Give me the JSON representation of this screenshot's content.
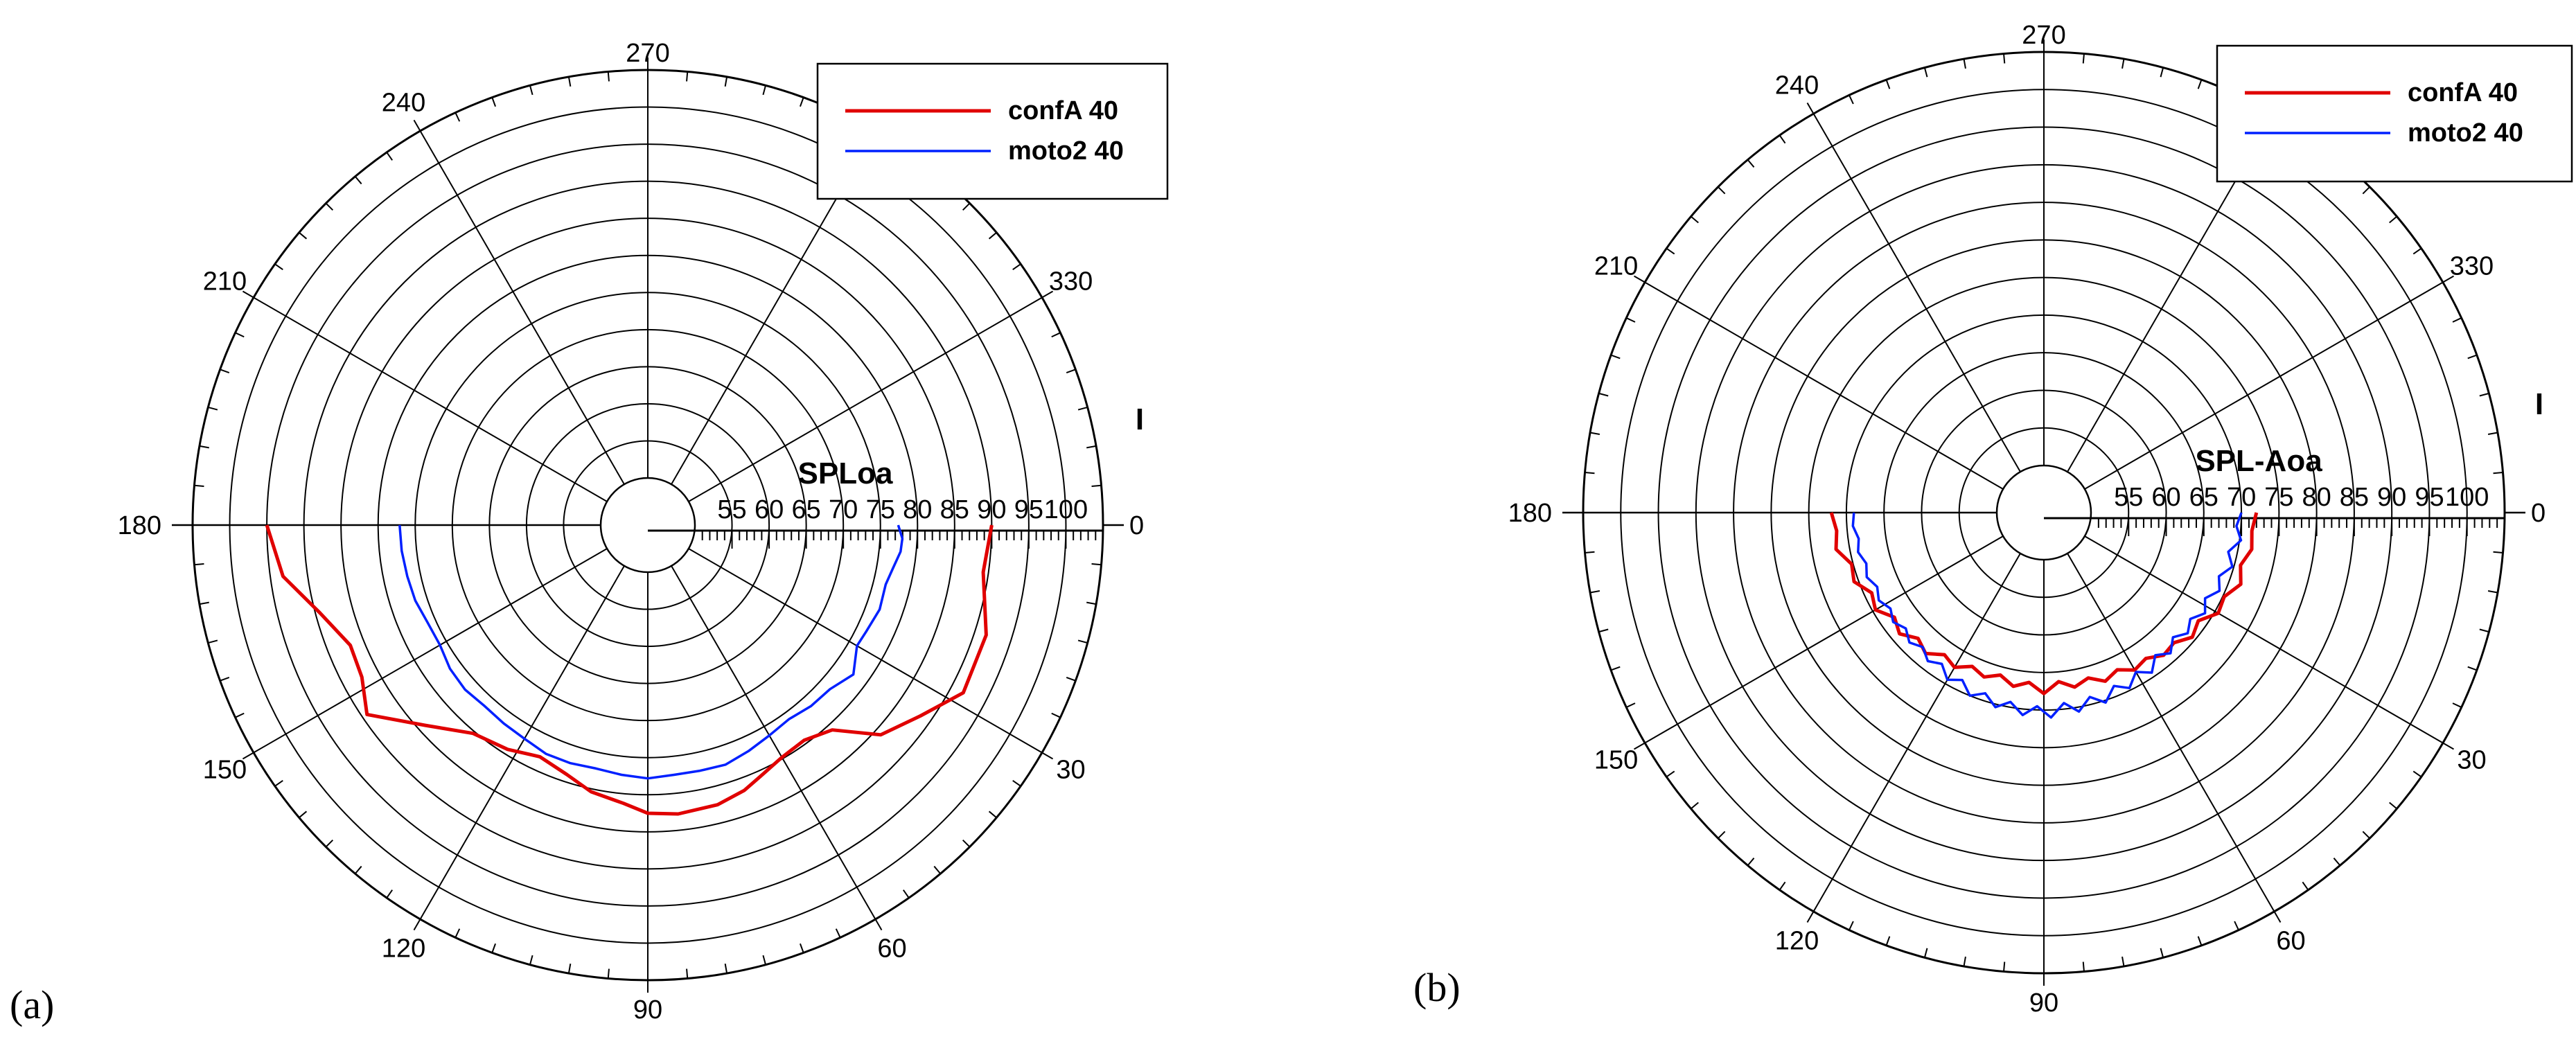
{
  "chart_data": [
    {
      "type": "polar-line",
      "panel_label": "(a)",
      "radial_axis_title": "SPLoa",
      "angle_axis_title": "I",
      "radial_range": [
        50,
        105
      ],
      "radial_ticks": [
        55,
        60,
        65,
        70,
        75,
        80,
        85,
        90,
        95,
        100
      ],
      "angle_ticks": [
        0,
        30,
        60,
        90,
        120,
        150,
        180,
        210,
        240,
        270,
        330
      ],
      "angle_direction": "clockwise from right",
      "legend_position": "top-right",
      "grid": true,
      "series": [
        {
          "name": "confA 40",
          "color": "#e00000",
          "theta": [
            0,
            8,
            18,
            28,
            35,
            42,
            48,
            54,
            60,
            66,
            70,
            76,
            84,
            90,
            95,
            102,
            108,
            115,
            122,
            130,
            138,
            146,
            152,
            158,
            165,
            172,
            180
          ],
          "r": [
            90,
            89.3,
            91.6,
            91.8,
            88.5,
            85.9,
            80.8,
            79.5,
            79.8,
            80.8,
            81.7,
            82.5,
            82.8,
            82.5,
            81.3,
            80.4,
            79.0,
            78.1,
            79.3,
            80.3,
            84.0,
            89.3,
            87.3,
            86.9,
            89.4,
            93.3,
            95
          ]
        },
        {
          "name": "moto2 40",
          "color": "#0020ff",
          "theta": [
            0,
            3,
            6,
            10,
            14,
            20,
            26,
            30,
            36,
            42,
            48,
            54,
            60,
            66,
            72,
            78,
            84,
            90,
            96,
            102,
            108,
            114,
            120,
            126,
            132,
            138,
            144,
            150,
            156,
            162,
            168,
            174,
            180
          ],
          "r": [
            77.4,
            78.0,
            77.9,
            77.2,
            76.7,
            76.9,
            76.4,
            76.2,
            77.9,
            76.7,
            76.5,
            76.0,
            76.4,
            77.0,
            77.6,
            77.5,
            77.5,
            77.8,
            77.5,
            77.2,
            77.4,
            77.4,
            76.9,
            76.7,
            76.5,
            76.8,
            76.6,
            76.0,
            76.1,
            76.6,
            76.8,
            77.0,
            77.1
          ]
        }
      ]
    },
    {
      "type": "polar-line",
      "panel_label": "(b)",
      "radial_axis_title": "SPL-Aoa",
      "angle_axis_title": "I",
      "radial_range": [
        50,
        105
      ],
      "radial_ticks": [
        55,
        60,
        65,
        70,
        75,
        80,
        85,
        90,
        95,
        100
      ],
      "angle_ticks": [
        0,
        30,
        60,
        90,
        120,
        150,
        180,
        210,
        240,
        270,
        330
      ],
      "angle_direction": "clockwise from right",
      "legend_position": "top-right",
      "grid": true,
      "series": [
        {
          "name": "confA 40",
          "color": "#e00000",
          "theta": [
            0,
            5,
            10,
            15,
            20,
            25,
            30,
            35,
            40,
            45,
            50,
            55,
            60,
            65,
            70,
            75,
            80,
            85,
            90,
            95,
            100,
            105,
            110,
            115,
            120,
            125,
            130,
            135,
            140,
            145,
            150,
            155,
            160,
            165,
            170,
            175,
            180
          ],
          "r": [
            72,
            71.5,
            71.8,
            70.8,
            71.6,
            70.2,
            70.5,
            68.8,
            69.5,
            68.2,
            68.5,
            67.4,
            67.9,
            66.8,
            67.6,
            66.5,
            67.3,
            66.3,
            67.8,
            66.4,
            67.2,
            66.1,
            67.0,
            66.3,
            67.5,
            66.8,
            68.2,
            67.4,
            68.8,
            68.0,
            69.6,
            69.0,
            70.6,
            70.2,
            71.8,
            71.4,
            72.0
          ]
        },
        {
          "name": "moto2 40",
          "color": "#0020ff",
          "theta": [
            0,
            4,
            8,
            12,
            16,
            20,
            24,
            28,
            32,
            36,
            40,
            44,
            48,
            52,
            56,
            60,
            64,
            68,
            72,
            76,
            80,
            84,
            88,
            92,
            96,
            100,
            104,
            108,
            112,
            116,
            120,
            124,
            128,
            132,
            136,
            140,
            144,
            148,
            152,
            156,
            160,
            164,
            168,
            172,
            176,
            180
          ],
          "r": [
            70,
            69.4,
            70.2,
            68.8,
            69.8,
            68.5,
            69.3,
            68.0,
            69.0,
            67.8,
            68.7,
            67.6,
            68.9,
            67.8,
            69.4,
            68.2,
            69.7,
            68.6,
            70.3,
            69.0,
            70.6,
            69.2,
            71.0,
            69.5,
            70.8,
            69.3,
            70.4,
            69.0,
            70.0,
            68.5,
            69.4,
            68.0,
            68.8,
            67.8,
            68.6,
            67.7,
            68.5,
            67.8,
            68.6,
            68.0,
            68.8,
            68.3,
            69.0,
            68.6,
            69.2,
            69.0
          ]
        }
      ]
    }
  ]
}
